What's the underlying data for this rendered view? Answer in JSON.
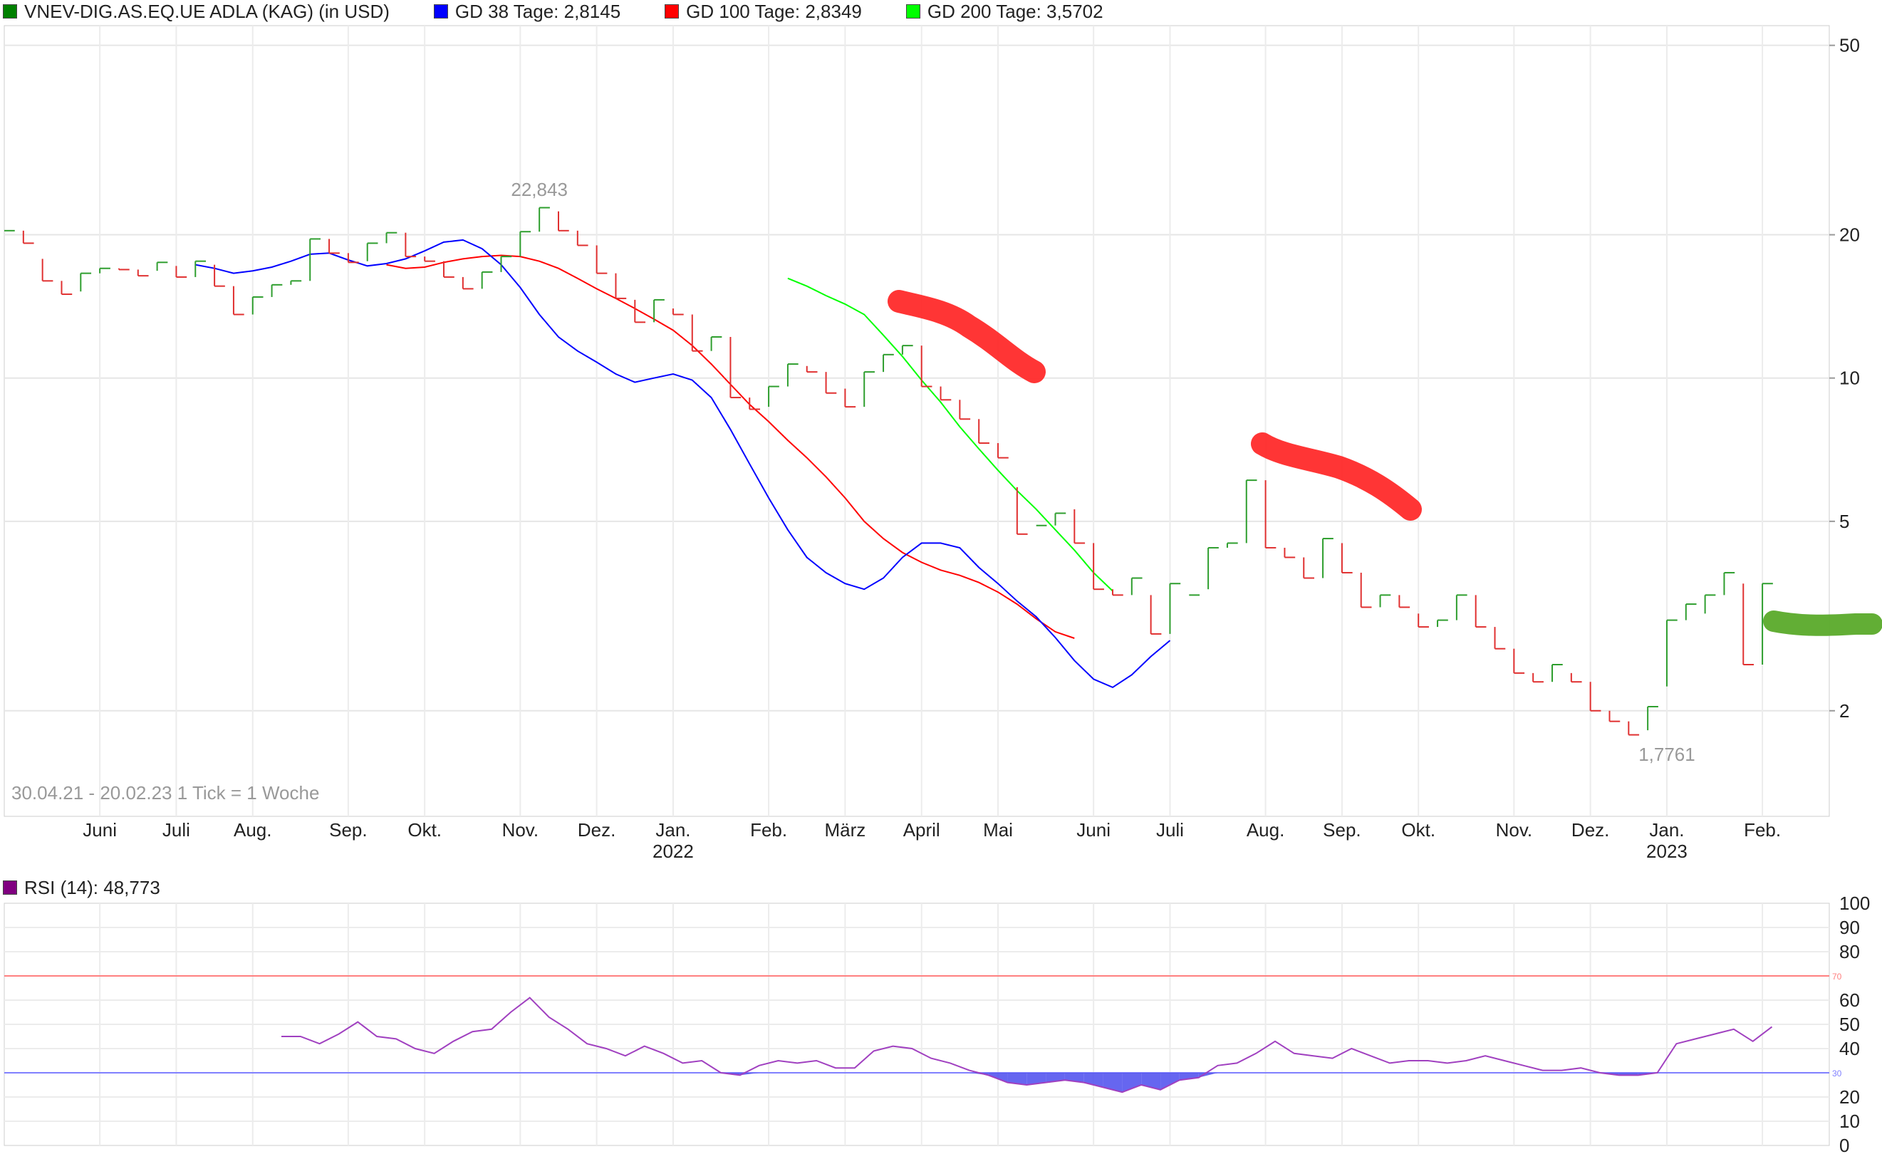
{
  "price_legend": [
    {
      "label": "VNEV-DIG.AS.EQ.UE ADLA (KAG) (in USD)",
      "color": "#008000"
    },
    {
      "label": "GD 38 Tage: 2,8145",
      "color": "#0000ff"
    },
    {
      "label": "GD 100 Tage: 2,8349",
      "color": "#ff0000"
    },
    {
      "label": "GD 200 Tage: 3,5702",
      "color": "#00ff00"
    }
  ],
  "rsi_legend": {
    "label": "RSI (14): 48,773",
    "color": "#800080"
  },
  "info": {
    "range": "30.04.21 - 20.02.23",
    "tick": "1 Tick = 1 Woche"
  },
  "chart_data": [
    {
      "type": "line",
      "scale": "log",
      "ylim": [
        1.2,
        55
      ],
      "yticks": [
        50,
        20,
        10,
        5,
        2
      ],
      "xlim": [
        0,
        95.5
      ],
      "xticks": [
        {
          "label": "Juni",
          "x": 5
        },
        {
          "label": "Juli",
          "x": 9
        },
        {
          "label": "Aug.",
          "x": 13
        },
        {
          "label": "Sep.",
          "x": 18
        },
        {
          "label": "Okt.",
          "x": 22
        },
        {
          "label": "Nov.",
          "x": 27
        },
        {
          "label": "Dez.",
          "x": 31
        },
        {
          "label": "Jan.",
          "x": 35,
          "year": "2022"
        },
        {
          "label": "Feb.",
          "x": 40
        },
        {
          "label": "März",
          "x": 44
        },
        {
          "label": "April",
          "x": 48
        },
        {
          "label": "Mai",
          "x": 52
        },
        {
          "label": "Juni",
          "x": 57
        },
        {
          "label": "Juli",
          "x": 61
        },
        {
          "label": "Aug.",
          "x": 66
        },
        {
          "label": "Sep.",
          "x": 70
        },
        {
          "label": "Okt.",
          "x": 74
        },
        {
          "label": "Nov.",
          "x": 79
        },
        {
          "label": "Dez.",
          "x": 83
        },
        {
          "label": "Jan.",
          "x": 87,
          "year": "2023"
        },
        {
          "label": "Feb.",
          "x": 92
        }
      ],
      "annotations": [
        {
          "text": "22,843",
          "x": 28,
          "y": 22.843,
          "pos": "above"
        },
        {
          "text": "1,7761",
          "x": 87,
          "y": 1.7761,
          "pos": "below"
        }
      ],
      "weekly_bars": [
        [
          0,
          20.4,
          20.4
        ],
        [
          1,
          20.4,
          19.2
        ],
        [
          2,
          17.8,
          16.0
        ],
        [
          3,
          16.0,
          15.0
        ],
        [
          4,
          15.2,
          16.6
        ],
        [
          5,
          16.6,
          17.0
        ],
        [
          6,
          17.0,
          16.9
        ],
        [
          7,
          16.9,
          16.4
        ],
        [
          8,
          16.8,
          17.5
        ],
        [
          9,
          17.2,
          16.3
        ],
        [
          10,
          16.3,
          17.6
        ],
        [
          11,
          17.3,
          15.6
        ],
        [
          12,
          15.6,
          13.6
        ],
        [
          13,
          13.6,
          14.8
        ],
        [
          14,
          14.8,
          15.7
        ],
        [
          15,
          15.7,
          16.0
        ],
        [
          16,
          16.0,
          19.6
        ],
        [
          17,
          19.6,
          18.3
        ],
        [
          18,
          18.3,
          17.5
        ],
        [
          19,
          17.6,
          19.2
        ],
        [
          20,
          19.2,
          20.2
        ],
        [
          21,
          20.2,
          18.0
        ],
        [
          22,
          18.0,
          17.6
        ],
        [
          23,
          17.6,
          16.3
        ],
        [
          24,
          16.3,
          15.4
        ],
        [
          25,
          15.4,
          16.7
        ],
        [
          26,
          16.7,
          18.0
        ],
        [
          27,
          18.0,
          20.3
        ],
        [
          28,
          20.3,
          22.8
        ],
        [
          29,
          22.4,
          20.4
        ],
        [
          30,
          20.4,
          19.0
        ],
        [
          31,
          19.0,
          16.6
        ],
        [
          32,
          16.6,
          14.7
        ],
        [
          33,
          14.6,
          13.1
        ],
        [
          34,
          13.1,
          14.6
        ],
        [
          35,
          14.0,
          13.6
        ],
        [
          36,
          13.6,
          11.4
        ],
        [
          37,
          11.4,
          12.2
        ],
        [
          38,
          12.2,
          9.1
        ],
        [
          39,
          9.1,
          8.6
        ],
        [
          40,
          8.7,
          9.6
        ],
        [
          41,
          9.6,
          10.7
        ],
        [
          42,
          10.6,
          10.3
        ],
        [
          43,
          10.3,
          9.3
        ],
        [
          44,
          9.5,
          8.7
        ],
        [
          45,
          8.7,
          10.3
        ],
        [
          46,
          10.3,
          11.2
        ],
        [
          47,
          11.2,
          11.7
        ],
        [
          48,
          11.7,
          9.6
        ],
        [
          49,
          9.6,
          9.0
        ],
        [
          50,
          9.0,
          8.2
        ],
        [
          51,
          8.2,
          7.3
        ],
        [
          52,
          7.3,
          6.8
        ],
        [
          53,
          5.9,
          4.7
        ],
        [
          54,
          4.9,
          4.9
        ],
        [
          55,
          4.9,
          5.2
        ],
        [
          56,
          5.3,
          4.5
        ],
        [
          57,
          4.5,
          3.6
        ],
        [
          58,
          3.6,
          3.5
        ],
        [
          59,
          3.5,
          3.8
        ],
        [
          60,
          3.5,
          2.9
        ],
        [
          61,
          2.9,
          3.7
        ],
        [
          62,
          3.5,
          3.5
        ],
        [
          63,
          3.6,
          4.4
        ],
        [
          64,
          4.4,
          4.5
        ],
        [
          65,
          4.5,
          6.1
        ],
        [
          66,
          6.1,
          4.4
        ],
        [
          67,
          4.4,
          4.2
        ],
        [
          68,
          4.2,
          3.8
        ],
        [
          69,
          3.8,
          4.6
        ],
        [
          70,
          4.5,
          3.9
        ],
        [
          71,
          3.9,
          3.3
        ],
        [
          72,
          3.3,
          3.5
        ],
        [
          73,
          3.5,
          3.3
        ],
        [
          74,
          3.2,
          3.0
        ],
        [
          75,
          3.0,
          3.1
        ],
        [
          76,
          3.1,
          3.5
        ],
        [
          77,
          3.5,
          3.0
        ],
        [
          78,
          3.0,
          2.7
        ],
        [
          79,
          2.7,
          2.4
        ],
        [
          80,
          2.4,
          2.3
        ],
        [
          81,
          2.3,
          2.5
        ],
        [
          82,
          2.4,
          2.3
        ],
        [
          83,
          2.3,
          2.0
        ],
        [
          84,
          2.0,
          1.9
        ],
        [
          85,
          1.9,
          1.78
        ],
        [
          86,
          1.82,
          2.04
        ],
        [
          87,
          2.25,
          3.1
        ],
        [
          88,
          3.1,
          3.35
        ],
        [
          89,
          3.2,
          3.5
        ],
        [
          90,
          3.5,
          3.9
        ],
        [
          91,
          3.7,
          2.5
        ],
        [
          92,
          2.5,
          3.7
        ]
      ],
      "series": [
        {
          "name": "GD 38 Tage",
          "color": "#0000ff",
          "start": 10,
          "values": [
            17.3,
            17.0,
            16.6,
            16.8,
            17.1,
            17.6,
            18.2,
            18.3,
            17.7,
            17.2,
            17.4,
            17.8,
            18.5,
            19.3,
            19.5,
            18.7,
            17.3,
            15.5,
            13.6,
            12.2,
            11.4,
            10.8,
            10.2,
            9.8,
            10.0,
            10.2,
            9.9,
            9.1,
            7.8,
            6.6,
            5.6,
            4.8,
            4.2,
            3.9,
            3.7,
            3.6,
            3.8,
            4.2,
            4.5,
            4.5,
            4.4,
            4.0,
            3.7,
            3.4,
            3.15,
            2.85,
            2.55,
            2.33,
            2.24,
            2.38,
            2.6,
            2.81
          ]
        },
        {
          "name": "GD 100 Tage",
          "color": "#ff0000",
          "start": 20,
          "values": [
            17.3,
            17.0,
            17.1,
            17.5,
            17.8,
            18.0,
            18.1,
            18.0,
            17.6,
            17.0,
            16.2,
            15.4,
            14.7,
            14.0,
            13.3,
            12.6,
            11.7,
            10.7,
            9.7,
            8.8,
            8.1,
            7.4,
            6.8,
            6.2,
            5.6,
            5.0,
            4.6,
            4.3,
            4.1,
            3.95,
            3.85,
            3.72,
            3.55,
            3.35,
            3.12,
            2.93,
            2.84
          ]
        },
        {
          "name": "GD 200 Tage",
          "color": "#00ff00",
          "start": 41,
          "values": [
            16.2,
            15.6,
            14.9,
            14.3,
            13.6,
            12.3,
            11.1,
            9.9,
            8.9,
            7.9,
            7.1,
            6.4,
            5.8,
            5.3,
            4.8,
            4.35,
            3.9,
            3.57
          ]
        }
      ]
    },
    {
      "type": "line",
      "ylim": [
        0,
        100
      ],
      "yticks": [
        100,
        90,
        80,
        60,
        50,
        40,
        20,
        10,
        0
      ],
      "levels": [
        70,
        30
      ],
      "series": [
        {
          "name": "RSI (14)",
          "color": "#800080",
          "start": 14.5,
          "values": [
            45,
            45,
            42,
            46,
            51,
            45,
            44,
            40,
            38,
            43,
            47,
            48,
            55,
            61,
            53,
            48,
            42,
            40,
            37,
            41,
            38,
            34,
            35,
            30,
            29,
            33,
            35,
            34,
            35,
            32,
            32,
            39,
            41,
            40,
            36,
            34,
            31,
            29,
            26,
            25,
            26,
            27,
            26,
            24,
            22,
            25,
            23,
            27,
            28,
            33,
            34,
            38,
            43,
            38,
            37,
            36,
            40,
            37,
            34,
            35,
            35,
            34,
            35,
            37,
            35,
            33,
            31,
            31,
            32,
            30,
            29,
            29,
            30,
            42,
            44,
            46,
            48,
            43,
            49
          ]
        }
      ]
    }
  ]
}
